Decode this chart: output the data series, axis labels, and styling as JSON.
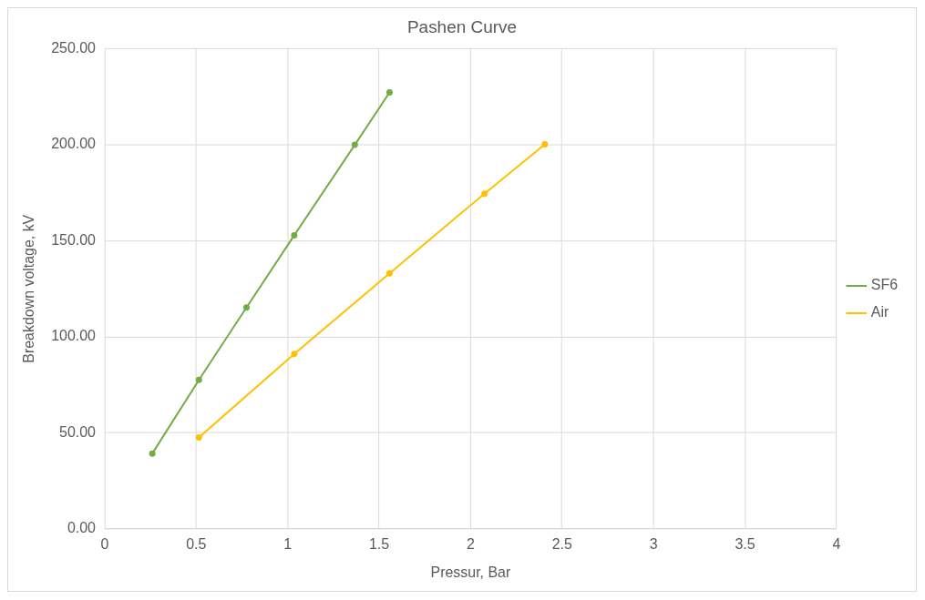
{
  "chart_data": {
    "type": "line",
    "title": "Pashen Curve",
    "xlabel": "Pressur, Bar",
    "ylabel": "Breakdown voltage, kV",
    "series": [
      {
        "name": "SF6",
        "color": "#70ad47",
        "x": [
          0.26,
          0.515,
          0.775,
          1.036,
          1.367,
          1.557
        ],
        "values": [
          39.2,
          77.6,
          115.3,
          152.9,
          200.0,
          227.3
        ]
      },
      {
        "name": "Air",
        "color": "#ffc000",
        "x": [
          0.515,
          1.036,
          1.557,
          2.076,
          2.406
        ],
        "values": [
          47.6,
          91.1,
          133.1,
          174.6,
          200.3
        ]
      }
    ],
    "xlim": [
      0,
      4
    ],
    "xticks": [
      0,
      0.5,
      1,
      1.5,
      2,
      2.5,
      3,
      3.5,
      4
    ],
    "ylim": [
      0,
      250
    ],
    "yticks": [
      {
        "value": 0,
        "label": "0.00"
      },
      {
        "value": 50,
        "label": "50.00"
      },
      {
        "value": 100,
        "label": "100.00"
      },
      {
        "value": 150,
        "label": "150.00"
      },
      {
        "value": 200,
        "label": "200.00"
      },
      {
        "value": 250,
        "label": "250.00"
      }
    ],
    "grid": true,
    "legend": "right",
    "marker": "circle",
    "line_style": "solid"
  }
}
